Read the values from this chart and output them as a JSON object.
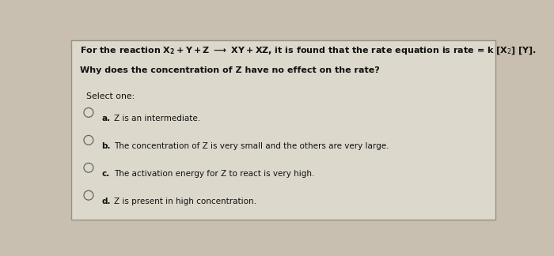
{
  "bg_color": "#c8bfb0",
  "card_bg": "#ddd8cc",
  "border_color": "#999085",
  "font_color": "#111111",
  "circle_color": "#666666",
  "title_line1_plain": "For the reaction ",
  "title_formula": "X₂+Y+Z → XY+XZ,",
  "title_line1_rest": " it is found that the rate equation is rate = k [X₂] [Y].",
  "title_line2": "Why does the concentration of Z have no effect on the rate?",
  "select_one": "Select one:",
  "options": [
    {
      "label": "a.",
      "text": "Z is an intermediate."
    },
    {
      "label": "b.",
      "text": "The concentration of Z is very small and the others are very large."
    },
    {
      "label": "c.",
      "text": "The activation energy for Z to react is very high."
    },
    {
      "label": "d.",
      "text": "Z is present in high concentration."
    }
  ],
  "font_size_main": 8.0,
  "font_size_options": 7.5,
  "font_size_select": 7.8
}
